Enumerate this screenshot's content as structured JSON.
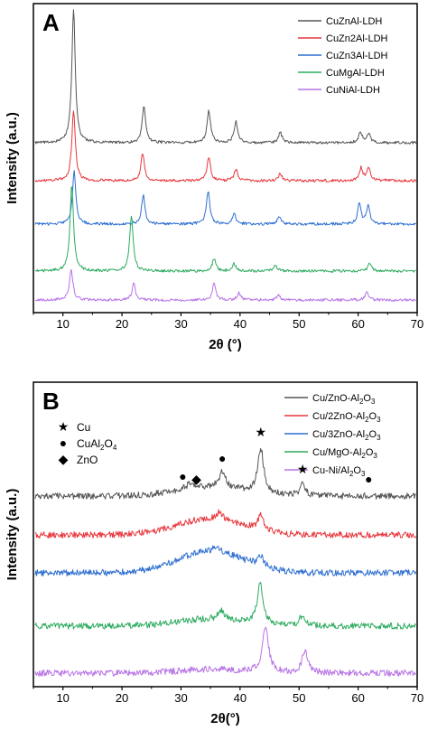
{
  "chart_data": [
    {
      "panel": "A",
      "type": "line",
      "xlabel": "2θ (°)",
      "ylabel": "Intensity (a.u.)",
      "xlim": [
        5,
        70
      ],
      "xticks": [
        10,
        20,
        30,
        40,
        50,
        60,
        70
      ],
      "y_ticks_shown": false,
      "grid": false,
      "legend_position": "top-right",
      "series": [
        {
          "name": "CuZnAl-LDH",
          "color": "#555555",
          "peaks": [
            {
              "x": 11.8,
              "h": 148
            },
            {
              "x": 23.7,
              "h": 40
            },
            {
              "x": 34.7,
              "h": 36
            },
            {
              "x": 39.3,
              "h": 24
            },
            {
              "x": 46.8,
              "h": 12
            },
            {
              "x": 60.4,
              "h": 12
            },
            {
              "x": 61.8,
              "h": 10
            }
          ]
        },
        {
          "name": "CuZn2Al-LDH",
          "color": "#e8353b",
          "peaks": [
            {
              "x": 11.8,
              "h": 78
            },
            {
              "x": 23.5,
              "h": 30
            },
            {
              "x": 34.7,
              "h": 26
            },
            {
              "x": 39.3,
              "h": 12
            },
            {
              "x": 46.8,
              "h": 8
            },
            {
              "x": 60.5,
              "h": 14
            },
            {
              "x": 61.8,
              "h": 14
            }
          ]
        },
        {
          "name": "CuZn3Al-LDH",
          "color": "#2e6fd1",
          "peaks": [
            {
              "x": 11.9,
              "h": 58
            },
            {
              "x": 23.6,
              "h": 32
            },
            {
              "x": 34.6,
              "h": 36
            },
            {
              "x": 39.0,
              "h": 12
            },
            {
              "x": 46.6,
              "h": 9
            },
            {
              "x": 60.2,
              "h": 22
            },
            {
              "x": 61.7,
              "h": 20
            }
          ]
        },
        {
          "name": "CuMgAl-LDH",
          "color": "#2dab5f",
          "peaks": [
            {
              "x": 11.5,
              "h": 96
            },
            {
              "x": 21.6,
              "h": 62
            },
            {
              "x": 35.6,
              "h": 14
            },
            {
              "x": 39.0,
              "h": 8
            },
            {
              "x": 46.0,
              "h": 6
            },
            {
              "x": 62.0,
              "h": 9
            }
          ]
        },
        {
          "name": "CuNiAl-LDH",
          "color": "#b873e6",
          "peaks": [
            {
              "x": 11.4,
              "h": 34
            },
            {
              "x": 22.0,
              "h": 18
            },
            {
              "x": 35.6,
              "h": 18
            },
            {
              "x": 39.8,
              "h": 8
            },
            {
              "x": 46.5,
              "h": 5
            },
            {
              "x": 61.5,
              "h": 9
            }
          ]
        }
      ]
    },
    {
      "panel": "B",
      "type": "line",
      "xlabel": "2θ(°)",
      "ylabel": "Intensity (a.u.)",
      "xlim": [
        5,
        70
      ],
      "xticks": [
        10,
        20,
        30,
        40,
        50,
        60,
        70
      ],
      "y_ticks_shown": false,
      "grid": false,
      "legend_position": "top-right",
      "phase_legend": [
        {
          "symbol": "★",
          "label": "Cu"
        },
        {
          "symbol": "●",
          "label": "CuAl",
          "sub1": "2",
          "mid": "O",
          "sub2": "4"
        },
        {
          "symbol": "◆",
          "label": "ZnO"
        }
      ],
      "markers": [
        {
          "symbol": "●",
          "x": 30.3
        },
        {
          "symbol": "◆",
          "x": 32.6
        },
        {
          "symbol": "●",
          "x": 37.0
        },
        {
          "symbol": "★",
          "x": 43.5
        },
        {
          "symbol": "★",
          "x": 50.6
        },
        {
          "symbol": "●",
          "x": 61.8
        }
      ],
      "series": [
        {
          "name": "Cu/ZnO-Al2O3",
          "label_parts": [
            "Cu/ZnO-Al",
            "2",
            "O",
            "3"
          ],
          "color": "#555555",
          "peaks": [
            {
              "x": 43.5,
              "h": 50
            },
            {
              "x": 37.0,
              "h": 18
            },
            {
              "x": 50.6,
              "h": 12
            },
            {
              "x": 31.5,
              "h": 6
            }
          ]
        },
        {
          "name": "Cu/2ZnO-Al2O3",
          "label_parts": [
            "Cu/2ZnO-Al",
            "2",
            "O",
            "3"
          ],
          "color": "#e8353b",
          "peaks": [
            {
              "x": 43.5,
              "h": 16
            },
            {
              "x": 36.5,
              "h": 8
            }
          ]
        },
        {
          "name": "Cu/3ZnO-Al2O3",
          "label_parts": [
            "Cu/3ZnO-Al",
            "2",
            "O",
            "3"
          ],
          "color": "#2e6fd1",
          "peaks": [
            {
              "x": 43.5,
              "h": 12
            },
            {
              "x": 36.0,
              "h": 6
            }
          ]
        },
        {
          "name": "Cu/MgO-Al2O3",
          "label_parts": [
            "Cu/MgO-Al",
            "2",
            "O",
            "3"
          ],
          "color": "#2dab5f",
          "peaks": [
            {
              "x": 43.4,
              "h": 44
            },
            {
              "x": 36.8,
              "h": 9
            },
            {
              "x": 50.6,
              "h": 12
            }
          ]
        },
        {
          "name": "Cu-Ni/Al2O3",
          "label_parts": [
            "Cu-Ni/Al",
            "2",
            "O",
            "3"
          ],
          "color": "#b873e6",
          "peaks": [
            {
              "x": 44.3,
              "h": 52
            },
            {
              "x": 51.0,
              "h": 24
            }
          ]
        }
      ]
    }
  ]
}
